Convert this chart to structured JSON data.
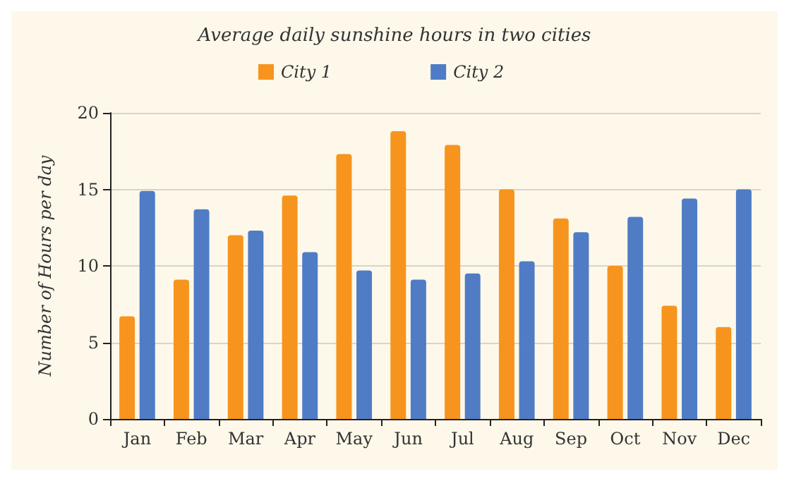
{
  "chart_data": {
    "type": "bar",
    "title": "Average daily sunshine hours in two cities",
    "ylabel": "Number of Hours per day",
    "categories": [
      "Jan",
      "Feb",
      "Mar",
      "Apr",
      "May",
      "Jun",
      "Jul",
      "Aug",
      "Sep",
      "Oct",
      "Nov",
      "Dec"
    ],
    "series": [
      {
        "name": "City 1",
        "color": "#f7941d",
        "values": [
          6.7,
          9.1,
          12.0,
          14.6,
          17.3,
          18.8,
          17.9,
          15.0,
          13.1,
          10.0,
          7.4,
          6.0
        ]
      },
      {
        "name": "City 2",
        "color": "#4f7cc4",
        "values": [
          14.9,
          13.7,
          12.3,
          10.9,
          9.7,
          9.1,
          9.5,
          10.3,
          12.2,
          13.2,
          14.4,
          15.0
        ]
      }
    ],
    "ylim": [
      0,
      20
    ],
    "yticks": [
      0,
      5,
      10,
      15,
      20
    ],
    "grid": "y",
    "legend": "top left"
  }
}
